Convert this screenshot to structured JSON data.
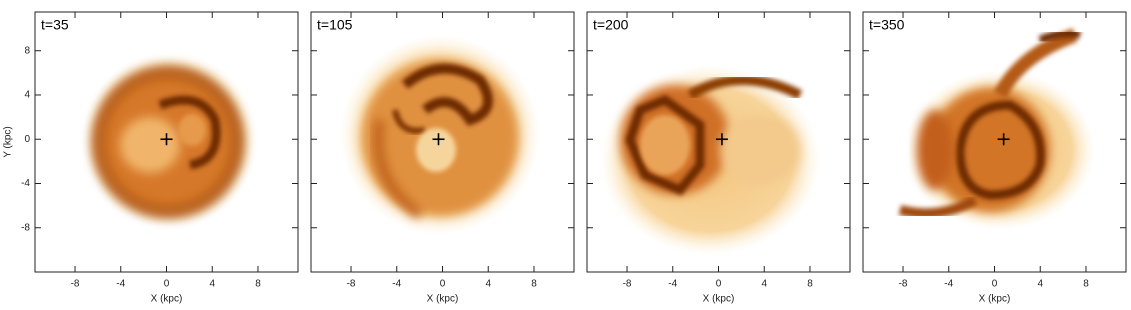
{
  "chart_data": [
    {
      "type": "heatmap",
      "title": "t=35",
      "xlabel": "X (kpc)",
      "ylabel": "Y (kpc)",
      "xlim": [
        -11.5,
        11.5
      ],
      "ylim": [
        -12,
        11.5
      ],
      "xticks": [
        -8,
        -4,
        0,
        4,
        8
      ],
      "yticks": [
        -8,
        -4,
        0,
        4,
        8
      ],
      "ytick_labels": true,
      "marker": {
        "x": 0,
        "y": 0
      }
    },
    {
      "type": "heatmap",
      "title": "t=105",
      "xlabel": "X (kpc)",
      "xlim": [
        -11.5,
        11.5
      ],
      "ylim": [
        -12,
        11.5
      ],
      "xticks": [
        -8,
        -4,
        0,
        4,
        8
      ],
      "yticks": [
        -8,
        -4,
        0,
        4,
        8
      ],
      "ytick_labels": false,
      "marker": {
        "x": -0.35,
        "y": 0
      }
    },
    {
      "type": "heatmap",
      "title": "t=200",
      "xlabel": "X (kpc)",
      "xlim": [
        -11.5,
        11.5
      ],
      "ylim": [
        -12,
        11.5
      ],
      "xticks": [
        -8,
        -4,
        0,
        4,
        8
      ],
      "yticks": [
        -8,
        -4,
        0,
        4,
        8
      ],
      "ytick_labels": false,
      "marker": {
        "x": 0.3,
        "y": 0
      }
    },
    {
      "type": "heatmap",
      "title": "t=350",
      "xlabel": "X (kpc)",
      "xlim": [
        -11.5,
        11.5
      ],
      "ylim": [
        -12,
        11.5
      ],
      "xticks": [
        -8,
        -4,
        0,
        4,
        8
      ],
      "yticks": [
        -8,
        -4,
        0,
        4,
        8
      ],
      "ytick_labels": false,
      "marker": {
        "x": 0.8,
        "y": 0
      }
    }
  ]
}
